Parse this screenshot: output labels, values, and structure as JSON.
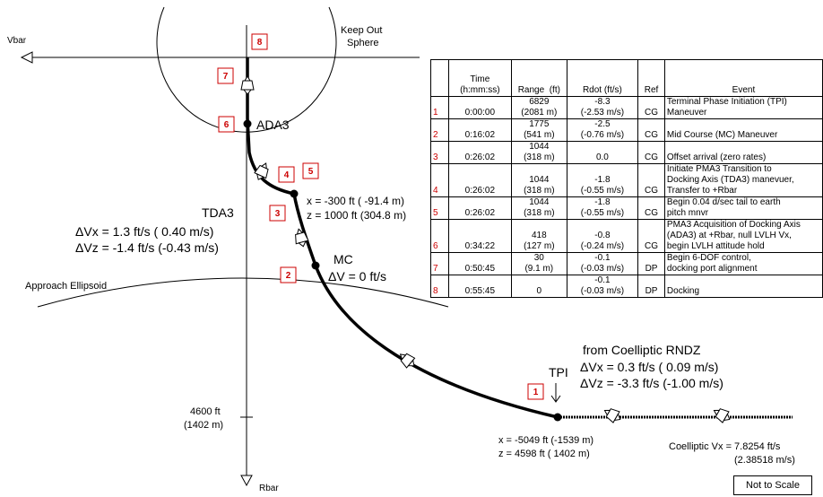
{
  "axes": {
    "vbar_label": "Vbar",
    "rbar_label": "Rbar"
  },
  "keep_out_sphere_label": [
    "Keep Out",
    "Sphere"
  ],
  "approach_ellipsoid_label": "Approach Ellipsoid",
  "ada3_label": "ADA3",
  "tda3": {
    "title": "TDA3",
    "dvx": "ΔVx =  1.3 ft/s ( 0.40 m/s)",
    "dvz": "ΔVz = -1.4 ft/s (-0.43 m/s)"
  },
  "tda3_point": {
    "x": "x = -300 ft ( -91.4 m)",
    "z": "z = 1000 ft (304.8 m)"
  },
  "mc": {
    "title": "MC",
    "dv": "ΔV = 0 ft/s"
  },
  "tpi": {
    "title": "TPI",
    "from": "from Coelliptic RNDZ",
    "dvx": "ΔVx =  0.3 ft/s ( 0.09 m/s)",
    "dvz": "ΔVz = -3.3 ft/s (-1.00 m/s)"
  },
  "tpi_point": {
    "x": "x = -5049 ft (-1539 m)",
    "z": "z =  4598 ft ( 1402 m)"
  },
  "distance_marker": {
    "ft": "4600 ft",
    "m": "(1402 m)"
  },
  "coelliptic": {
    "line1": "Coelliptic Vx = 7.8254 ft/s",
    "line2": "(2.38518 m/s)"
  },
  "markers": [
    "1",
    "2",
    "3",
    "4",
    "5",
    "6",
    "7",
    "8"
  ],
  "not_to_scale": "Not to Scale",
  "table": {
    "headers": [
      "",
      "Time\n(h:mm:ss)",
      "Range  (ft)",
      "Rdot (ft/s)",
      "Ref",
      "Event"
    ],
    "rows": [
      {
        "num": "1",
        "time": "0:00:00",
        "range": "6829\n(2081 m)",
        "rdot": "-8.3\n(-2.53 m/s)",
        "ref": "CG",
        "event": "Terminal Phase Initiation (TPI)\nManeuver"
      },
      {
        "num": "2",
        "time": "0:16:02",
        "range": "1775\n(541 m)",
        "rdot": "-2.5\n(-0.76 m/s)",
        "ref": "CG",
        "event": "Mid Course (MC) Maneuver"
      },
      {
        "num": "3",
        "time": "0:26:02",
        "range": "1044\n(318 m)",
        "rdot": "0.0",
        "ref": "CG",
        "event": "Offset arrival (zero rates)"
      },
      {
        "num": "4",
        "time": "0:26:02",
        "range": "1044\n(318 m)",
        "rdot": "-1.8\n(-0.55 m/s)",
        "ref": "CG",
        "event": "Initiate PMA3 Transition to\nDocking Axis (TDA3) manevuer,\nTransfer to +Rbar"
      },
      {
        "num": "5",
        "time": "0:26:02",
        "range": "1044\n(318 m)",
        "rdot": "-1.8\n(-0.55 m/s)",
        "ref": "CG",
        "event": "Begin 0.04 d/sec tail to earth\npitch mnvr"
      },
      {
        "num": "6",
        "time": "0:34:22",
        "range": "418\n(127 m)",
        "rdot": "-0.8\n(-0.24 m/s)",
        "ref": "CG",
        "event": "PMA3 Acquisition of Docking Axis\n(ADA3) at +Rbar, null LVLH Vx,\nbegin LVLH attitude hold"
      },
      {
        "num": "7",
        "time": "0:50:45",
        "range": "30\n(9.1 m)",
        "rdot": "-0.1\n(-0.03 m/s)",
        "ref": "DP",
        "event": "Begin 6-DOF control,\ndocking port alignment"
      },
      {
        "num": "8",
        "time": "0:55:45",
        "range": "0",
        "rdot": "-0.1\n(-0.03 m/s)",
        "ref": "DP",
        "event": "Docking"
      }
    ]
  }
}
